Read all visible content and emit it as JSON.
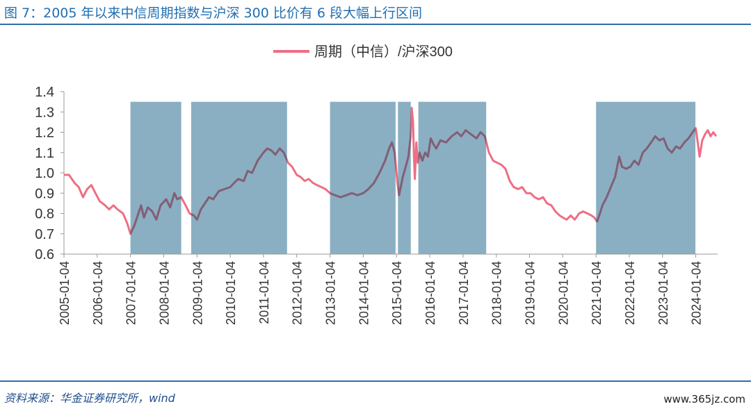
{
  "header": {
    "title": "图 7：2005 年以来中信周期指数与沪深 300 比价有 6 段大幅上行区间"
  },
  "footer": {
    "source": "资料来源：华金证券研究所，wind",
    "watermark": "www.365jz.com"
  },
  "chart_data": {
    "type": "line",
    "title": "",
    "xlabel": "",
    "ylabel": "",
    "ylim": [
      0.6,
      1.4
    ],
    "yticks": [
      "0.6",
      "0.7",
      "0.8",
      "0.9",
      "1.0",
      "1.1",
      "1.2",
      "1.3",
      "1.4"
    ],
    "xlim": [
      "2005-01-04",
      "2024-08-31"
    ],
    "xticks": [
      "2005-01-04",
      "2006-01-04",
      "2007-01-04",
      "2008-01-04",
      "2009-01-04",
      "2010-01-04",
      "2011-01-04",
      "2012-01-04",
      "2013-01-04",
      "2014-01-04",
      "2015-01-04",
      "2016-01-04",
      "2017-01-04",
      "2018-01-04",
      "2019-01-04",
      "2020-01-04",
      "2021-01-04",
      "2022-01-04",
      "2023-01-04",
      "2024-01-04"
    ],
    "legend": {
      "position": "top-center"
    },
    "series": [
      {
        "name": "周期（中信）/沪深300",
        "color": "#ee6e84",
        "points": [
          [
            "2005-01-04",
            0.99
          ],
          [
            "2005-03-01",
            0.99
          ],
          [
            "2005-05-01",
            0.95
          ],
          [
            "2005-06-15",
            0.93
          ],
          [
            "2005-08-01",
            0.88
          ],
          [
            "2005-09-15",
            0.92
          ],
          [
            "2005-11-01",
            0.94
          ],
          [
            "2005-12-15",
            0.9
          ],
          [
            "2006-02-01",
            0.86
          ],
          [
            "2006-04-01",
            0.84
          ],
          [
            "2006-05-15",
            0.82
          ],
          [
            "2006-07-01",
            0.84
          ],
          [
            "2006-08-15",
            0.82
          ],
          [
            "2006-10-15",
            0.8
          ],
          [
            "2006-12-01",
            0.75
          ],
          [
            "2007-01-04",
            0.7
          ],
          [
            "2007-02-15",
            0.74
          ],
          [
            "2007-04-01",
            0.8
          ],
          [
            "2007-05-01",
            0.84
          ],
          [
            "2007-06-01",
            0.78
          ],
          [
            "2007-07-15",
            0.83
          ],
          [
            "2007-09-01",
            0.81
          ],
          [
            "2007-10-15",
            0.77
          ],
          [
            "2007-12-01",
            0.84
          ],
          [
            "2008-02-01",
            0.87
          ],
          [
            "2008-03-15",
            0.83
          ],
          [
            "2008-05-01",
            0.9
          ],
          [
            "2008-06-01",
            0.87
          ],
          [
            "2008-07-15",
            0.88
          ],
          [
            "2008-09-01",
            0.84
          ],
          [
            "2008-10-15",
            0.8
          ],
          [
            "2008-12-01",
            0.79
          ],
          [
            "2009-01-04",
            0.77
          ],
          [
            "2009-02-15",
            0.82
          ],
          [
            "2009-04-01",
            0.85
          ],
          [
            "2009-05-15",
            0.88
          ],
          [
            "2009-07-01",
            0.87
          ],
          [
            "2009-09-01",
            0.91
          ],
          [
            "2009-11-01",
            0.92
          ],
          [
            "2010-01-04",
            0.93
          ],
          [
            "2010-02-15",
            0.95
          ],
          [
            "2010-04-01",
            0.97
          ],
          [
            "2010-06-01",
            0.96
          ],
          [
            "2010-07-15",
            1.01
          ],
          [
            "2010-09-01",
            1.0
          ],
          [
            "2010-11-01",
            1.06
          ],
          [
            "2011-01-04",
            1.1
          ],
          [
            "2011-02-15",
            1.12
          ],
          [
            "2011-04-01",
            1.11
          ],
          [
            "2011-05-15",
            1.09
          ],
          [
            "2011-07-01",
            1.12
          ],
          [
            "2011-08-15",
            1.1
          ],
          [
            "2011-10-01",
            1.05
          ],
          [
            "2011-11-15",
            1.03
          ],
          [
            "2012-01-04",
            0.99
          ],
          [
            "2012-02-15",
            0.98
          ],
          [
            "2012-04-01",
            0.96
          ],
          [
            "2012-05-15",
            0.97
          ],
          [
            "2012-07-01",
            0.95
          ],
          [
            "2012-08-15",
            0.94
          ],
          [
            "2012-10-01",
            0.93
          ],
          [
            "2012-11-15",
            0.92
          ],
          [
            "2013-01-04",
            0.9
          ],
          [
            "2013-03-01",
            0.89
          ],
          [
            "2013-05-01",
            0.88
          ],
          [
            "2013-07-01",
            0.89
          ],
          [
            "2013-09-01",
            0.9
          ],
          [
            "2013-11-01",
            0.89
          ],
          [
            "2014-01-04",
            0.9
          ],
          [
            "2014-03-01",
            0.92
          ],
          [
            "2014-05-01",
            0.95
          ],
          [
            "2014-07-01",
            1.0
          ],
          [
            "2014-09-01",
            1.06
          ],
          [
            "2014-10-15",
            1.12
          ],
          [
            "2014-11-15",
            1.15
          ],
          [
            "2014-12-15",
            1.1
          ],
          [
            "2015-01-15",
            0.95
          ],
          [
            "2015-02-01",
            0.89
          ],
          [
            "2015-02-20",
            0.93
          ],
          [
            "2015-03-15",
            0.98
          ],
          [
            "2015-04-15",
            1.03
          ],
          [
            "2015-05-15",
            1.08
          ],
          [
            "2015-06-10",
            1.18
          ],
          [
            "2015-06-20",
            1.32
          ],
          [
            "2015-07-05",
            1.25
          ],
          [
            "2015-07-15",
            1.08
          ],
          [
            "2015-07-25",
            0.97
          ],
          [
            "2015-08-10",
            1.15
          ],
          [
            "2015-08-25",
            1.05
          ],
          [
            "2015-09-15",
            1.1
          ],
          [
            "2015-10-15",
            1.06
          ],
          [
            "2015-11-15",
            1.1
          ],
          [
            "2015-12-15",
            1.08
          ],
          [
            "2016-01-15",
            1.17
          ],
          [
            "2016-02-15",
            1.14
          ],
          [
            "2016-03-15",
            1.12
          ],
          [
            "2016-05-01",
            1.16
          ],
          [
            "2016-07-01",
            1.15
          ],
          [
            "2016-09-01",
            1.18
          ],
          [
            "2016-11-01",
            1.2
          ],
          [
            "2016-12-15",
            1.18
          ],
          [
            "2017-02-01",
            1.21
          ],
          [
            "2017-04-01",
            1.19
          ],
          [
            "2017-06-01",
            1.17
          ],
          [
            "2017-07-15",
            1.2
          ],
          [
            "2017-09-01",
            1.18
          ],
          [
            "2017-10-15",
            1.1
          ],
          [
            "2017-12-01",
            1.06
          ],
          [
            "2018-01-15",
            1.05
          ],
          [
            "2018-03-01",
            1.04
          ],
          [
            "2018-04-15",
            1.02
          ],
          [
            "2018-06-01",
            0.96
          ],
          [
            "2018-07-15",
            0.93
          ],
          [
            "2018-09-01",
            0.92
          ],
          [
            "2018-10-15",
            0.93
          ],
          [
            "2018-12-01",
            0.9
          ],
          [
            "2019-01-15",
            0.9
          ],
          [
            "2019-03-01",
            0.88
          ],
          [
            "2019-04-15",
            0.87
          ],
          [
            "2019-06-01",
            0.88
          ],
          [
            "2019-07-15",
            0.85
          ],
          [
            "2019-09-01",
            0.84
          ],
          [
            "2019-10-15",
            0.81
          ],
          [
            "2019-12-01",
            0.79
          ],
          [
            "2020-01-04",
            0.78
          ],
          [
            "2020-02-15",
            0.77
          ],
          [
            "2020-04-01",
            0.79
          ],
          [
            "2020-05-15",
            0.77
          ],
          [
            "2020-07-01",
            0.8
          ],
          [
            "2020-08-15",
            0.81
          ],
          [
            "2020-10-01",
            0.8
          ],
          [
            "2020-11-15",
            0.79
          ],
          [
            "2020-12-15",
            0.78
          ],
          [
            "2021-01-15",
            0.76
          ],
          [
            "2021-02-15",
            0.8
          ],
          [
            "2021-03-15",
            0.84
          ],
          [
            "2021-05-01",
            0.88
          ],
          [
            "2021-06-15",
            0.93
          ],
          [
            "2021-08-01",
            0.98
          ],
          [
            "2021-09-15",
            1.08
          ],
          [
            "2021-10-15",
            1.03
          ],
          [
            "2021-12-01",
            1.02
          ],
          [
            "2022-01-15",
            1.03
          ],
          [
            "2022-03-01",
            1.06
          ],
          [
            "2022-04-15",
            1.04
          ],
          [
            "2022-06-01",
            1.1
          ],
          [
            "2022-07-15",
            1.12
          ],
          [
            "2022-09-01",
            1.15
          ],
          [
            "2022-10-15",
            1.18
          ],
          [
            "2022-12-01",
            1.16
          ],
          [
            "2023-01-15",
            1.17
          ],
          [
            "2023-03-01",
            1.12
          ],
          [
            "2023-04-15",
            1.1
          ],
          [
            "2023-06-01",
            1.13
          ],
          [
            "2023-07-15",
            1.12
          ],
          [
            "2023-09-01",
            1.15
          ],
          [
            "2023-10-15",
            1.17
          ],
          [
            "2023-12-01",
            1.2
          ],
          [
            "2024-01-04",
            1.22
          ],
          [
            "2024-02-01",
            1.13
          ],
          [
            "2024-02-15",
            1.08
          ],
          [
            "2024-03-15",
            1.16
          ],
          [
            "2024-04-15",
            1.19
          ],
          [
            "2024-05-15",
            1.21
          ],
          [
            "2024-06-15",
            1.18
          ],
          [
            "2024-07-15",
            1.2
          ],
          [
            "2024-08-15",
            1.18
          ]
        ]
      }
    ],
    "shaded_regions": [
      [
        "2007-01-04",
        "2008-07-15"
      ],
      [
        "2008-11-01",
        "2011-09-20"
      ],
      [
        "2013-01-04",
        "2014-12-25"
      ],
      [
        "2015-01-20",
        "2015-06-10"
      ],
      [
        "2015-09-01",
        "2017-09-15"
      ],
      [
        "2021-01-04",
        "2023-12-31"
      ]
    ],
    "shade_color": "#8aafc2",
    "line_color": "#ee6e84",
    "overlap_color": "#7d6178"
  }
}
